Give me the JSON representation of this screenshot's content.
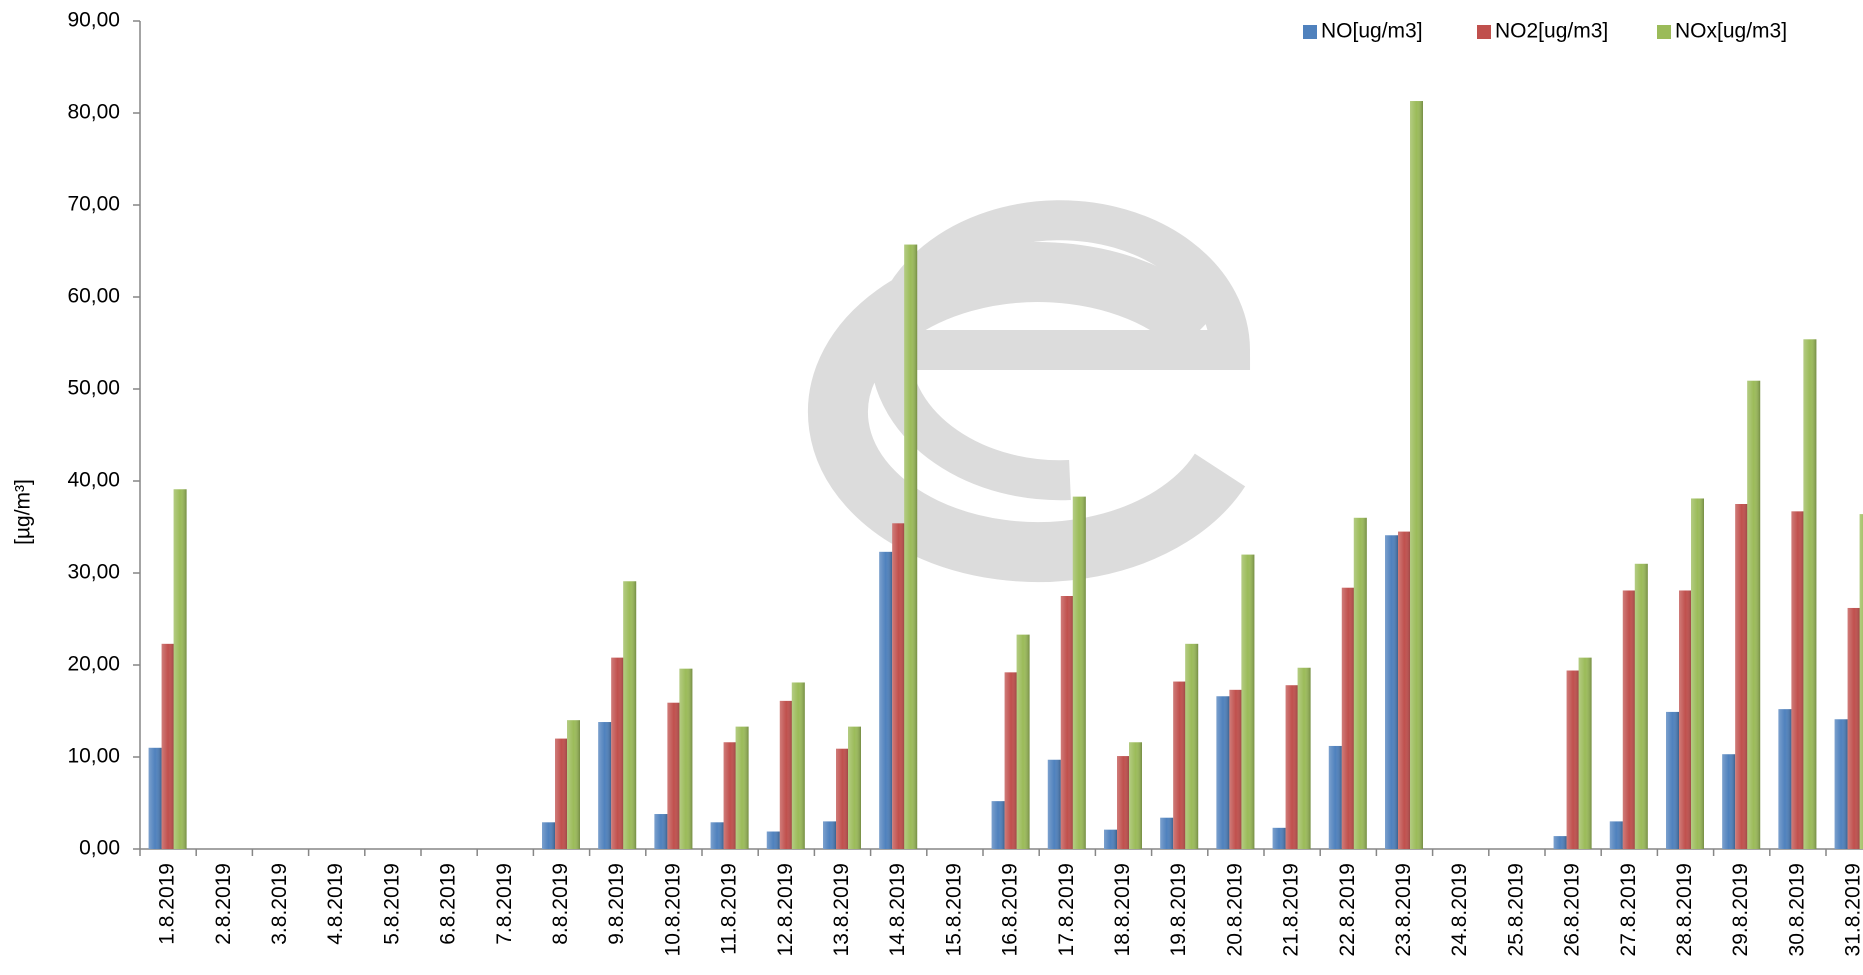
{
  "chart_data": {
    "type": "bar",
    "y_label": "[µg/m³]",
    "categories": [
      "1.8.2019",
      "2.8.2019",
      "3.8.2019",
      "4.8.2019",
      "5.8.2019",
      "6.8.2019",
      "7.8.2019",
      "8.8.2019",
      "9.8.2019",
      "10.8.2019",
      "11.8.2019",
      "12.8.2019",
      "13.8.2019",
      "14.8.2019",
      "15.8.2019",
      "16.8.2019",
      "17.8.2019",
      "18.8.2019",
      "19.8.2019",
      "20.8.2019",
      "21.8.2019",
      "22.8.2019",
      "23.8.2019",
      "24.8.2019",
      "25.8.2019",
      "26.8.2019",
      "27.8.2019",
      "28.8.2019",
      "29.8.2019",
      "30.8.2019",
      "31.8.2019"
    ],
    "series": [
      {
        "name": "NO[ug/m3]",
        "color": "#4f81bd",
        "values": [
          11.0,
          null,
          null,
          null,
          null,
          null,
          null,
          2.9,
          13.8,
          3.8,
          2.9,
          1.9,
          3.0,
          32.3,
          null,
          5.2,
          9.7,
          2.1,
          3.4,
          16.6,
          2.3,
          11.2,
          34.1,
          null,
          null,
          1.4,
          3.0,
          14.9,
          10.3,
          15.2,
          14.1
        ]
      },
      {
        "name": "NO2[ug/m3]",
        "color": "#c0504d",
        "values": [
          22.3,
          null,
          null,
          null,
          null,
          null,
          null,
          12.0,
          20.8,
          15.9,
          11.6,
          16.1,
          10.9,
          35.4,
          null,
          19.2,
          27.5,
          10.1,
          18.2,
          17.3,
          17.8,
          28.4,
          34.5,
          null,
          null,
          19.4,
          28.1,
          28.1,
          37.5,
          36.7,
          26.2
        ]
      },
      {
        "name": "NOx[ug/m3]",
        "color": "#9bbb59",
        "values": [
          39.1,
          null,
          null,
          null,
          null,
          null,
          null,
          14.0,
          29.1,
          19.6,
          13.3,
          18.1,
          13.3,
          65.7,
          null,
          23.3,
          38.3,
          11.6,
          22.3,
          32.0,
          19.7,
          36.0,
          81.3,
          null,
          null,
          20.8,
          31.0,
          38.1,
          50.9,
          55.4,
          36.4
        ]
      }
    ],
    "ylim": [
      0,
      90
    ],
    "yticks": [
      {
        "value": 0,
        "label": "0,00"
      },
      {
        "value": 10,
        "label": "10,00"
      },
      {
        "value": 20,
        "label": "20,00"
      },
      {
        "value": 30,
        "label": "30,00"
      },
      {
        "value": 40,
        "label": "40,00"
      },
      {
        "value": 50,
        "label": "50,00"
      },
      {
        "value": 60,
        "label": "60,00"
      },
      {
        "value": 70,
        "label": "70,00"
      },
      {
        "value": 80,
        "label": "80,00"
      },
      {
        "value": 90,
        "label": "90,00"
      }
    ],
    "legend": "top-right"
  }
}
